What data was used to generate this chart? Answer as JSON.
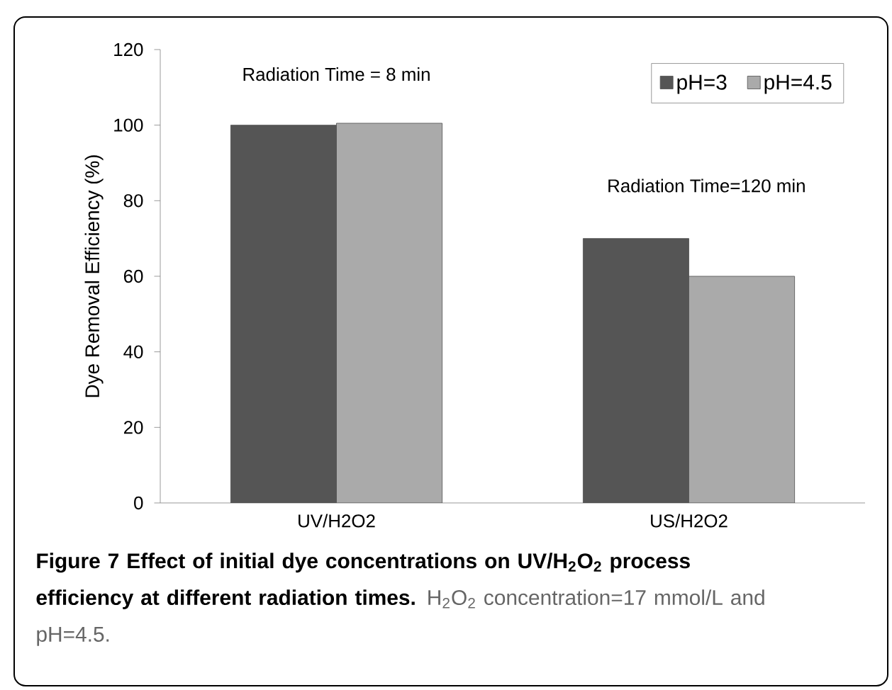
{
  "chart_data": {
    "type": "bar",
    "title": "Figure 7 Effect of initial dye concentrations on UV/H$_{2}$O$_{2}$ process efficiency at different radiation times.",
    "ylabel": "Dye Removal Efficiency (%)",
    "categories": [
      "UV/H2O2",
      "US/H2O2"
    ],
    "series": [
      {
        "name": "pH=3",
        "color": "#555555",
        "values": [
          100,
          70
        ]
      },
      {
        "name": "pH=4.5",
        "color": "#aaaaaa",
        "values": [
          100.5,
          60
        ]
      }
    ],
    "ylim": [
      0,
      120
    ],
    "yticks": [
      0,
      20,
      40,
      60,
      80,
      100,
      120
    ],
    "legend": "top right",
    "annotations": [
      "Radiation Time = 8 min",
      "Radiation Time=120 min",
      "H$_{2}$O$_{2}$ concentration=17 mmol/L and pH=4.5."
    ]
  }
}
